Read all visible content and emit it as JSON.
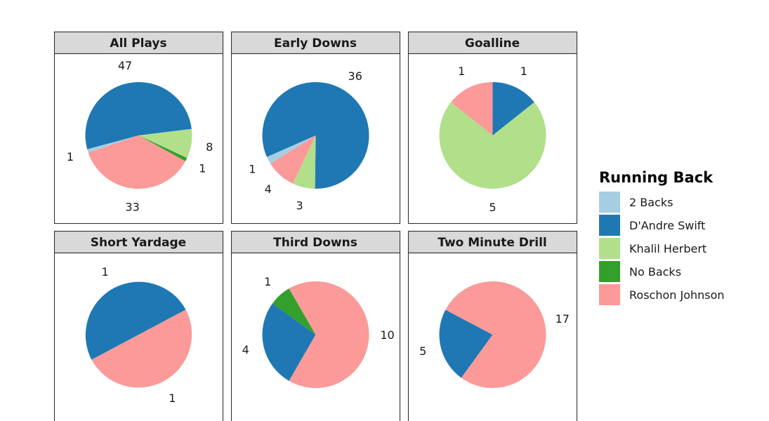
{
  "chart_data": {
    "type": "pie",
    "colors": {
      "2 Backs": "#a6cee3",
      "D'Andre Swift": "#1f78b4",
      "Khalil Herbert": "#b2df8a",
      "No Backs": "#33a02c",
      "Roschon Johnson": "#fb9a99"
    },
    "legend": {
      "title": "Running Back",
      "position": "right",
      "items": [
        "2 Backs",
        "D'Andre Swift",
        "Khalil Herbert",
        "No Backs",
        "Roschon Johnson"
      ]
    },
    "panels": [
      {
        "title": "All Plays",
        "slices": [
          {
            "label": "2 Backs",
            "value": 1
          },
          {
            "label": "D'Andre Swift",
            "value": 47
          },
          {
            "label": "Khalil Herbert",
            "value": 8
          },
          {
            "label": "No Backs",
            "value": 1
          },
          {
            "label": "Roschon Johnson",
            "value": 33
          }
        ]
      },
      {
        "title": "Early Downs",
        "slices": [
          {
            "label": "2 Backs",
            "value": 1
          },
          {
            "label": "D'Andre Swift",
            "value": 36
          },
          {
            "label": "Khalil Herbert",
            "value": 3
          },
          {
            "label": "Roschon Johnson",
            "value": 4
          }
        ]
      },
      {
        "title": "Goalline",
        "slices": [
          {
            "label": "D'Andre Swift",
            "value": 1
          },
          {
            "label": "Khalil Herbert",
            "value": 5
          },
          {
            "label": "Roschon Johnson",
            "value": 1
          }
        ]
      },
      {
        "title": "Short Yardage",
        "slices": [
          {
            "label": "D'Andre Swift",
            "value": 1
          },
          {
            "label": "Roschon Johnson",
            "value": 1
          }
        ]
      },
      {
        "title": "Third Downs",
        "slices": [
          {
            "label": "D'Andre Swift",
            "value": 4
          },
          {
            "label": "No Backs",
            "value": 1
          },
          {
            "label": "Roschon Johnson",
            "value": 10
          }
        ]
      },
      {
        "title": "Two Minute Drill",
        "slices": [
          {
            "label": "D'Andre Swift",
            "value": 5
          },
          {
            "label": "Roschon Johnson",
            "value": 17
          }
        ]
      }
    ]
  }
}
